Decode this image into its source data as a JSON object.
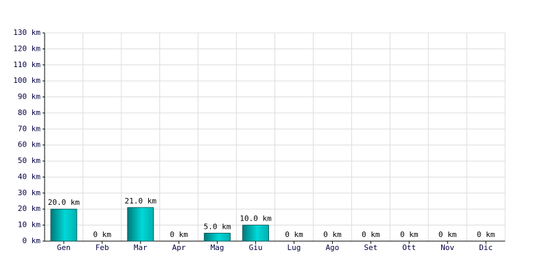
{
  "chart_data": {
    "type": "bar",
    "categories": [
      "Gen",
      "Feb",
      "Mar",
      "Apr",
      "Mag",
      "Giu",
      "Lug",
      "Ago",
      "Set",
      "Ott",
      "Nov",
      "Dic"
    ],
    "values": [
      20,
      0,
      21,
      0,
      5,
      10,
      0,
      0,
      0,
      0,
      0,
      0
    ],
    "value_labels": [
      "20.0 km",
      "0 km",
      "21.0 km",
      "0 km",
      "5.0 km",
      "10.0 km",
      "0 km",
      "0 km",
      "0 km",
      "0 km",
      "0 km",
      "0 km"
    ],
    "color": "#00d8d8",
    "ylim": [
      0,
      130
    ],
    "yticks": [
      {
        "value": 0,
        "label": "0 km"
      },
      {
        "value": 10,
        "label": "10 km"
      },
      {
        "value": 20,
        "label": "20 km"
      },
      {
        "value": 30,
        "label": "30 km"
      },
      {
        "value": 40,
        "label": "40 km"
      },
      {
        "value": 50,
        "label": "50 km"
      },
      {
        "value": 60,
        "label": "60 km"
      },
      {
        "value": 70,
        "label": "70 km"
      },
      {
        "value": 80,
        "label": "80 km"
      },
      {
        "value": 90,
        "label": "90 km"
      },
      {
        "value": 100,
        "label": "100 km"
      },
      {
        "value": 110,
        "label": "110 km"
      },
      {
        "value": 120,
        "label": "120 km"
      },
      {
        "value": 130,
        "label": "130 km"
      }
    ],
    "grid": true
  }
}
